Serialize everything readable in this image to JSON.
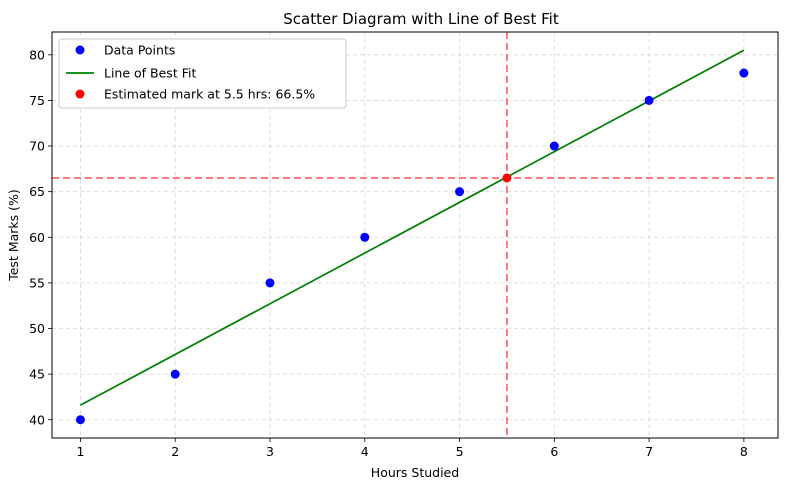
{
  "chart_data": {
    "type": "scatter",
    "title": "Scatter Diagram with Line of Best Fit",
    "xlabel": "Hours Studied",
    "ylabel": "Test Marks (%)",
    "xlim": [
      0.7,
      8.36
    ],
    "ylim": [
      38.0,
      82.5
    ],
    "xticks": [
      1,
      2,
      3,
      4,
      5,
      6,
      7,
      8
    ],
    "yticks": [
      40,
      45,
      50,
      55,
      60,
      65,
      70,
      75,
      80
    ],
    "grid": true,
    "legend_position": "top-left",
    "series": [
      {
        "name": "Data Points",
        "kind": "scatter",
        "color": "#0000ff",
        "x": [
          1,
          2,
          3,
          4,
          5,
          6,
          7,
          8
        ],
        "y": [
          40,
          45,
          55,
          60,
          65,
          70,
          75,
          78
        ]
      },
      {
        "name": "Line of Best Fit",
        "kind": "line",
        "color": "#008000",
        "x": [
          1,
          8
        ],
        "y": [
          41.6,
          80.5
        ]
      },
      {
        "name": "Estimated mark at 5.5 hrs: 66.5%",
        "kind": "scatter",
        "color": "#ff0000",
        "x": [
          5.5
        ],
        "y": [
          66.5
        ]
      }
    ],
    "reference_lines": {
      "color": "#ff0000",
      "vertical_x": 5.5,
      "horizontal_y": 66.5
    }
  }
}
